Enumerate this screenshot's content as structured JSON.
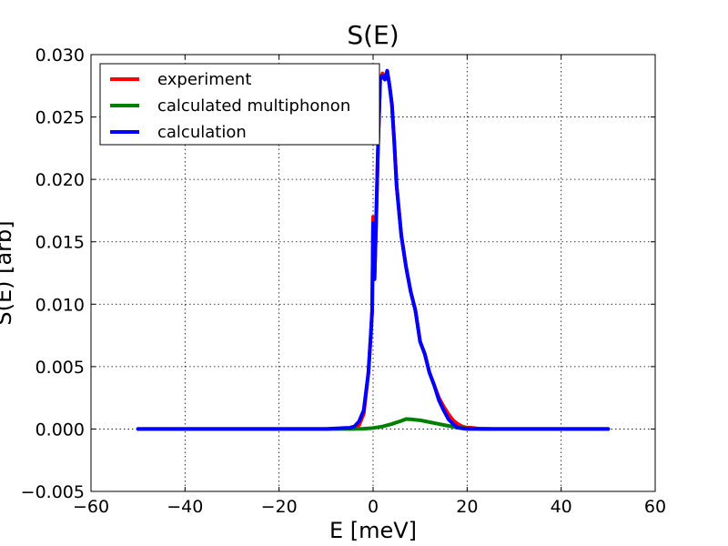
{
  "chart_data": {
    "type": "line",
    "title": "S(E)",
    "xlabel": "E [meV]",
    "ylabel": "S(E) [arb]",
    "xlim": [
      -60,
      60
    ],
    "ylim": [
      -0.005,
      0.03
    ],
    "xticks": [
      -60,
      -40,
      -20,
      0,
      20,
      40,
      60
    ],
    "xtick_labels": [
      "−60",
      "−40",
      "−20",
      "0",
      "20",
      "40",
      "60"
    ],
    "yticks": [
      -0.005,
      0.0,
      0.005,
      0.01,
      0.015,
      0.02,
      0.025,
      0.03
    ],
    "ytick_labels": [
      "−0.005",
      "0.000",
      "0.005",
      "0.010",
      "0.015",
      "0.020",
      "0.025",
      "0.030"
    ],
    "grid": true,
    "legend_position": "top-left",
    "series": [
      {
        "name": "experiment",
        "color": "#ff0000",
        "x": [
          -5,
          -3,
          -2,
          -1,
          -0.5,
          -0.2,
          0,
          0.3,
          0.6,
          1,
          1.5,
          2,
          2.5,
          3,
          3.5,
          4,
          4.5,
          5,
          5.5,
          6,
          7,
          8,
          9,
          10,
          11,
          12,
          13,
          14,
          15,
          16,
          17,
          18,
          19,
          20,
          21,
          22,
          23,
          24,
          25
        ],
        "y": [
          0.0,
          0.0003,
          0.0012,
          0.0045,
          0.0075,
          0.0095,
          0.017,
          0.012,
          0.016,
          0.022,
          0.028,
          0.0285,
          0.028,
          0.0287,
          0.0275,
          0.026,
          0.023,
          0.0195,
          0.0175,
          0.0155,
          0.013,
          0.011,
          0.0095,
          0.007,
          0.006,
          0.0045,
          0.0035,
          0.0025,
          0.0018,
          0.0012,
          0.0007,
          0.0004,
          0.0002,
          0.0001,
          0.0001,
          5e-05,
          0.0,
          0.0,
          0.0
        ]
      },
      {
        "name": "calculated multiphonon",
        "color": "#008000",
        "x": [
          -50,
          -10,
          -5,
          -2,
          0,
          2,
          4,
          6,
          7,
          8,
          10,
          12,
          14,
          16,
          18,
          20,
          25,
          30,
          50
        ],
        "y": [
          0.0,
          0.0,
          0.0,
          2e-05,
          8e-05,
          0.0002,
          0.0004,
          0.00065,
          0.0008,
          0.00078,
          0.0007,
          0.00055,
          0.0004,
          0.00025,
          0.00012,
          5e-05,
          0.0,
          0.0,
          0.0
        ]
      },
      {
        "name": "calculation",
        "color": "#0000ff",
        "x": [
          -50,
          -10,
          -5,
          -4,
          -3,
          -2,
          -1,
          -0.5,
          -0.2,
          0,
          0.3,
          0.6,
          1,
          1.5,
          2,
          2.5,
          3,
          3.5,
          4,
          4.5,
          5,
          5.5,
          6,
          7,
          8,
          9,
          10,
          11,
          12,
          13,
          14,
          15,
          16,
          17,
          18,
          20,
          25,
          30,
          50
        ],
        "y": [
          0.0,
          0.0,
          0.0001,
          0.0002,
          0.0006,
          0.0015,
          0.0045,
          0.0075,
          0.0095,
          0.0165,
          0.012,
          0.016,
          0.022,
          0.028,
          0.0283,
          0.028,
          0.0287,
          0.0275,
          0.026,
          0.023,
          0.0195,
          0.0175,
          0.0155,
          0.013,
          0.011,
          0.0095,
          0.007,
          0.006,
          0.0045,
          0.0035,
          0.0023,
          0.0015,
          0.0008,
          0.0004,
          0.0001,
          0.0,
          0.0,
          0.0,
          0.0
        ]
      }
    ]
  }
}
